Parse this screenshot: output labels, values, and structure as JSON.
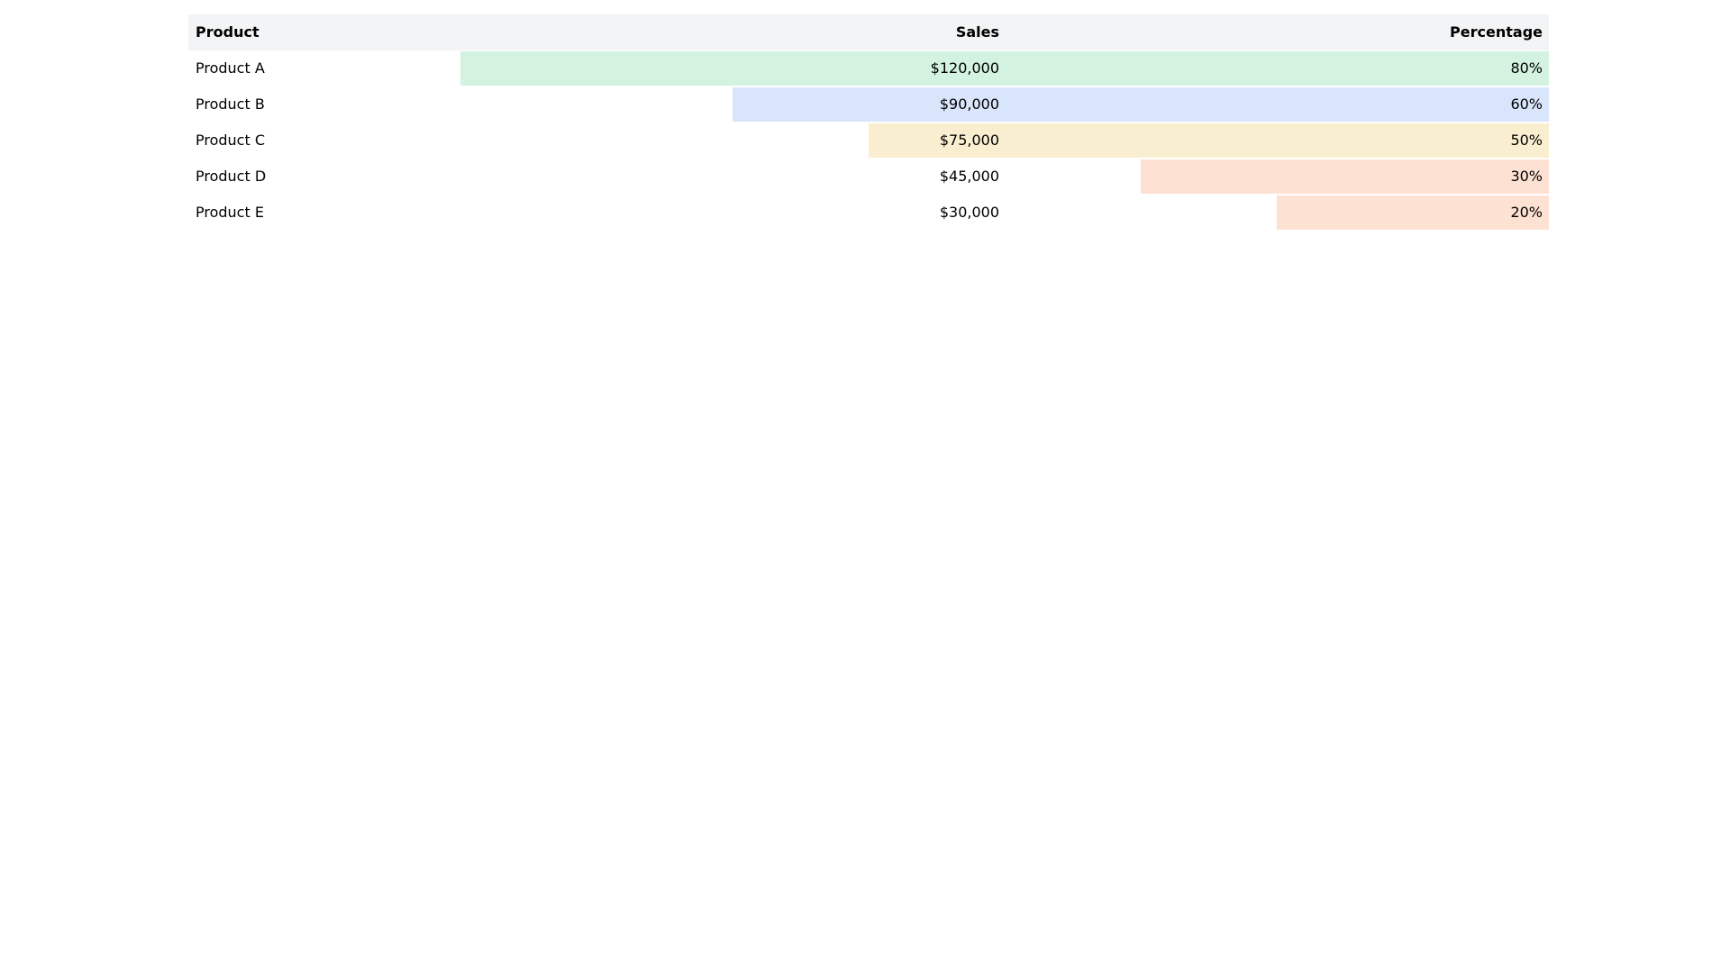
{
  "chart_data": {
    "type": "table",
    "columns": [
      "Product",
      "Sales",
      "Percentage"
    ],
    "rows": [
      {
        "product": "Product A",
        "sales": "$120,000",
        "percentage": "80%",
        "pct_value": 80,
        "color": "#d3f2e0"
      },
      {
        "product": "Product B",
        "sales": "$90,000",
        "percentage": "60%",
        "pct_value": 60,
        "color": "#d8e5fb"
      },
      {
        "product": "Product C",
        "sales": "$75,000",
        "percentage": "50%",
        "pct_value": 50,
        "color": "#f9efd0"
      },
      {
        "product": "Product D",
        "sales": "$45,000",
        "percentage": "30%",
        "pct_value": 30,
        "color": "#fde2d3"
      },
      {
        "product": "Product E",
        "sales": "$30,000",
        "percentage": "20%",
        "pct_value": 20,
        "color": "#fde2d3"
      }
    ],
    "header_color": "#f3f4f5"
  }
}
